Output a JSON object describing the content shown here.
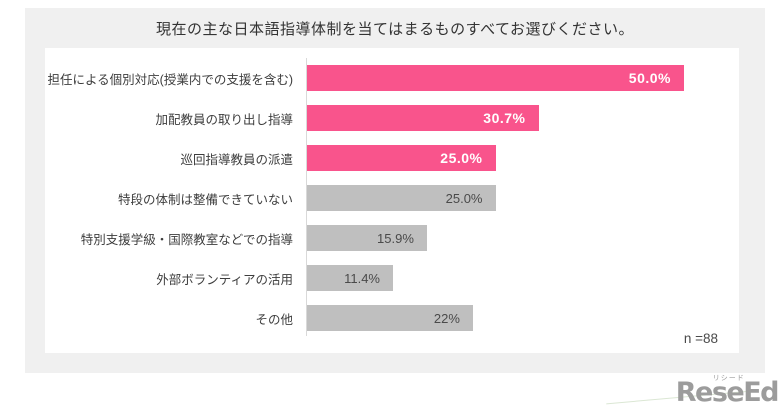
{
  "chart_data": {
    "type": "bar",
    "orientation": "horizontal",
    "title": "現在の主な日本語指導体制を当てはまるものすべてお選びください。",
    "categories": [
      "担任による個別対応(授業内での支援を含む)",
      "加配教員の取り出し指導",
      "巡回指導教員の派遣",
      "特段の体制は整備できていない",
      "特別支援学級・国際教室などでの指導",
      "外部ボランティアの活用",
      "その他"
    ],
    "values": [
      50.0,
      30.7,
      25.0,
      25.0,
      15.9,
      11.4,
      22
    ],
    "value_labels": [
      "50.0%",
      "30.7%",
      "25.0%",
      "25.0%",
      "15.9%",
      "11.4%",
      "22%"
    ],
    "highlighted": [
      true,
      true,
      true,
      false,
      false,
      false,
      false
    ],
    "xlim": [
      0,
      57.3
    ],
    "grid": false,
    "legend": false,
    "sample_size": "n =88"
  },
  "colors": {
    "bar_highlight": "#f9548c",
    "bar_default": "#bfbfbf",
    "value_on_highlight": "#ffffff",
    "value_on_default": "#4a4a4a",
    "card_background": "#f0f0f0",
    "axis_line": "#d9d9d9",
    "title_text": "#333333",
    "label_text": "#3d3d3d",
    "logo_gray": "#9c9c9c"
  },
  "footer": {
    "logo_text": "ReseEd",
    "logo_kana": "リシード"
  }
}
